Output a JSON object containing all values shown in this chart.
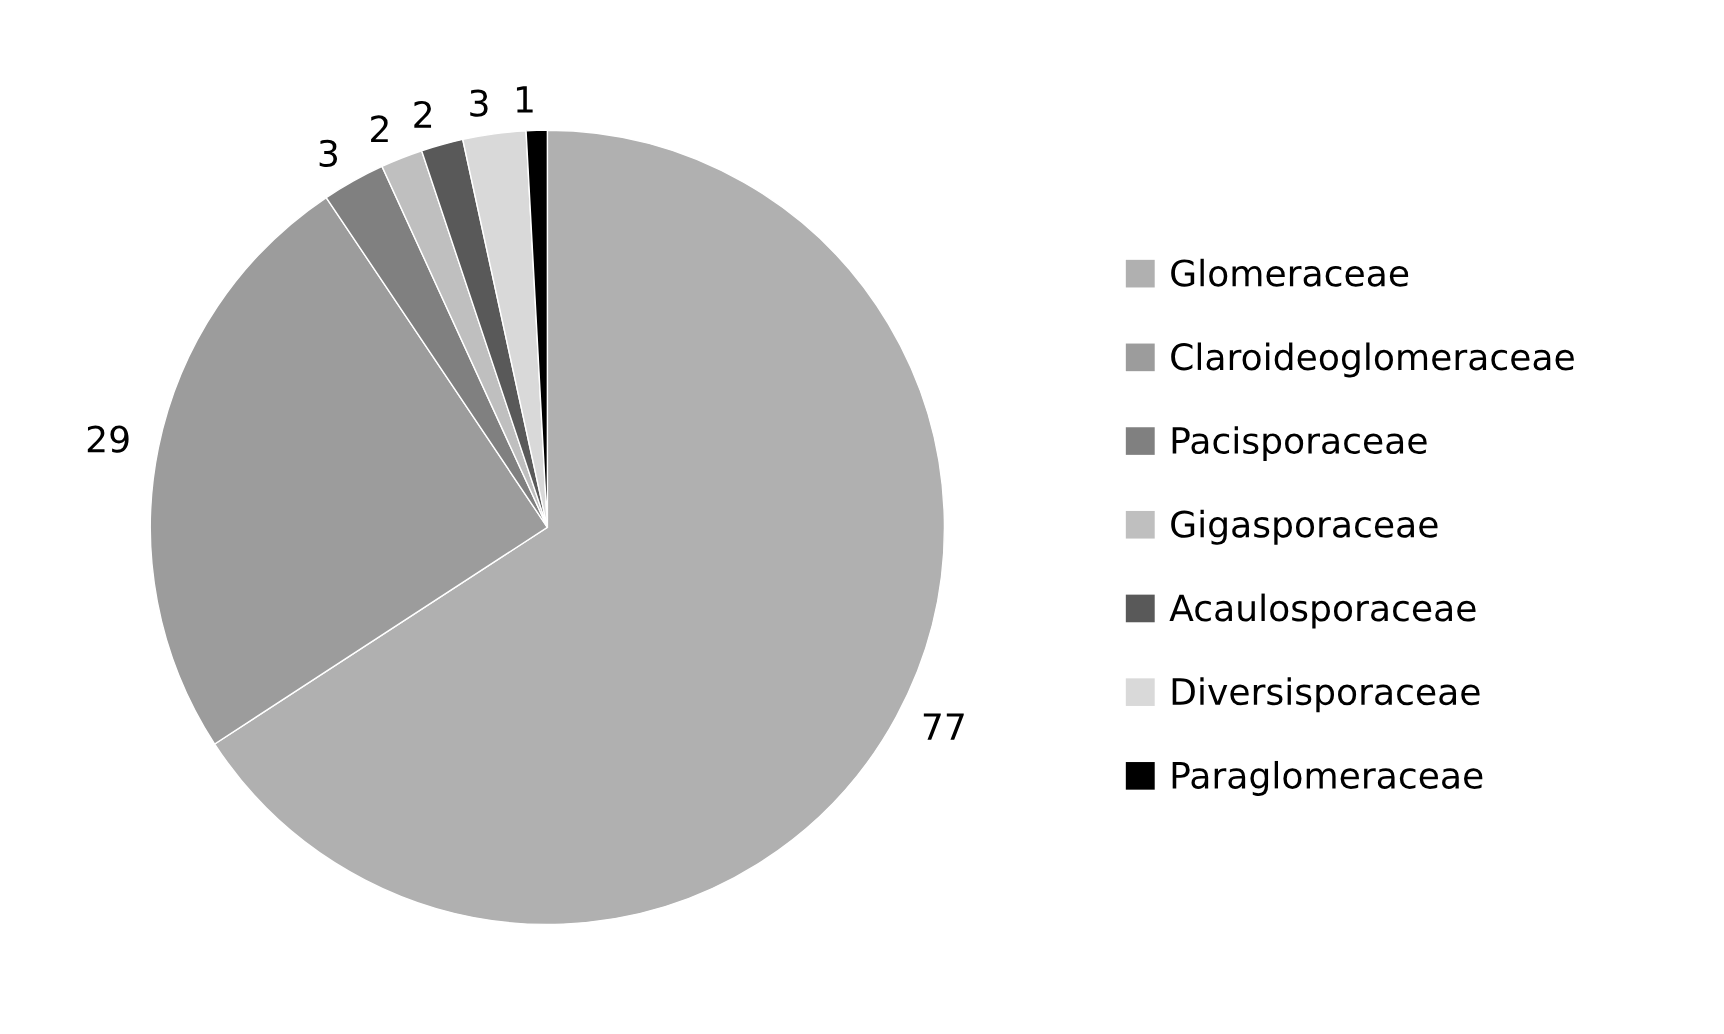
{
  "chart_data": {
    "type": "pie",
    "categories": [
      "Glomeraceae",
      "Claroideoglomeraceae",
      "Pacisporaceae",
      "Gigasporaceae",
      "Acaulosporaceae",
      "Diversisporaceae",
      "Paraglomeraceae"
    ],
    "values": [
      77,
      29,
      3,
      2,
      2,
      3,
      1
    ],
    "colors": [
      "#b0b0b0",
      "#9c9c9c",
      "#808080",
      "#bfbfbf",
      "#595959",
      "#d9d9d9",
      "#000000"
    ],
    "data_labels": true,
    "legend": "right"
  }
}
